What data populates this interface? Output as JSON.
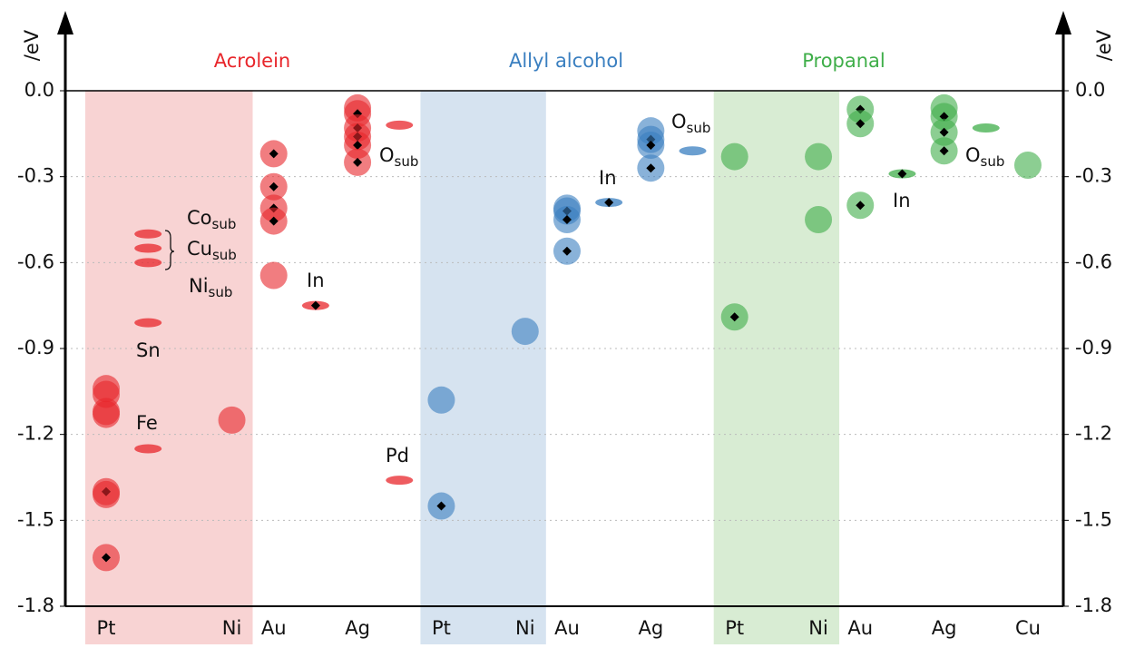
{
  "chart_data": {
    "type": "scatter",
    "ylabel": "/eV",
    "ylim": [
      -1.8,
      0
    ],
    "yticks": [
      {
        "value": 0,
        "label": "0.0"
      },
      -0.3,
      -0.6,
      -0.9,
      -1.2,
      -1.5,
      -1.8
    ],
    "grid": true,
    "categories": [
      "Pt",
      null,
      null,
      "Ni",
      "Au",
      null,
      "Ag",
      null,
      "Pt",
      null,
      "Ni",
      "Au",
      null,
      "Ag",
      null,
      "Pt",
      null,
      "Ni",
      "Au",
      null,
      "Ag",
      null,
      "Cu"
    ],
    "series": [
      {
        "name": "Acrolein",
        "color": "#e8262b",
        "band_color": "#f8d3d3",
        "points": [
          {
            "category": 0,
            "value": -1.04,
            "shape": "circle",
            "diamond": false
          },
          {
            "category": 0,
            "value": -1.06,
            "shape": "circle",
            "diamond": false
          },
          {
            "category": 0,
            "value": -1.12,
            "shape": "circle",
            "diamond": false
          },
          {
            "category": 0,
            "value": -1.13,
            "shape": "circle",
            "diamond": false
          },
          {
            "category": 0,
            "value": -1.4,
            "shape": "circle",
            "diamond": true
          },
          {
            "category": 0,
            "value": -1.41,
            "shape": "circle",
            "diamond": false
          },
          {
            "category": 0,
            "value": -1.63,
            "shape": "circle",
            "diamond": true
          },
          {
            "category": 1,
            "value": -0.5,
            "shape": "ellipse",
            "diamond": false
          },
          {
            "category": 1,
            "value": -0.55,
            "shape": "ellipse",
            "diamond": false
          },
          {
            "category": 1,
            "value": -0.6,
            "shape": "ellipse",
            "diamond": false
          },
          {
            "category": 1,
            "value": -0.81,
            "shape": "ellipse",
            "diamond": false
          },
          {
            "category": 1,
            "value": -1.25,
            "shape": "ellipse",
            "diamond": false
          },
          {
            "category": 3,
            "value": -1.15,
            "shape": "circle",
            "diamond": false
          },
          {
            "category": 4,
            "value": -0.22,
            "shape": "circle",
            "diamond": true
          },
          {
            "category": 4,
            "value": -0.335,
            "shape": "circle",
            "diamond": true
          },
          {
            "category": 4,
            "value": -0.41,
            "shape": "circle",
            "diamond": true
          },
          {
            "category": 4,
            "value": -0.455,
            "shape": "circle",
            "diamond": true
          },
          {
            "category": 4,
            "value": -0.645,
            "shape": "circle",
            "diamond": false
          },
          {
            "category": 5,
            "value": -0.75,
            "shape": "ellipse",
            "diamond": true
          },
          {
            "category": 6,
            "value": -0.06,
            "shape": "circle",
            "diamond": false
          },
          {
            "category": 6,
            "value": -0.08,
            "shape": "circle",
            "diamond": true
          },
          {
            "category": 6,
            "value": -0.13,
            "shape": "circle",
            "diamond": true
          },
          {
            "category": 6,
            "value": -0.16,
            "shape": "circle",
            "diamond": true
          },
          {
            "category": 6,
            "value": -0.19,
            "shape": "circle",
            "diamond": true
          },
          {
            "category": 6,
            "value": -0.25,
            "shape": "circle",
            "diamond": true
          },
          {
            "category": 7,
            "value": -0.12,
            "shape": "ellipse",
            "diamond": false
          },
          {
            "category": 7,
            "value": -1.36,
            "shape": "ellipse",
            "diamond": false
          }
        ]
      },
      {
        "name": "Allyl alcohol",
        "color": "#3a7fc0",
        "band_color": "#d6e3f0",
        "points": [
          {
            "category": 8,
            "value": -1.08,
            "shape": "circle",
            "diamond": false
          },
          {
            "category": 8,
            "value": -1.45,
            "shape": "circle",
            "diamond": true
          },
          {
            "category": 10,
            "value": -0.84,
            "shape": "circle",
            "diamond": false
          },
          {
            "category": 11,
            "value": -0.41,
            "shape": "circle",
            "diamond": false
          },
          {
            "category": 11,
            "value": -0.42,
            "shape": "circle",
            "diamond": true
          },
          {
            "category": 11,
            "value": -0.45,
            "shape": "circle",
            "diamond": true
          },
          {
            "category": 11,
            "value": -0.56,
            "shape": "circle",
            "diamond": true
          },
          {
            "category": 12,
            "value": -0.39,
            "shape": "ellipse",
            "diamond": true
          },
          {
            "category": 13,
            "value": -0.14,
            "shape": "circle",
            "diamond": false
          },
          {
            "category": 13,
            "value": -0.17,
            "shape": "circle",
            "diamond": true
          },
          {
            "category": 13,
            "value": -0.19,
            "shape": "circle",
            "diamond": true
          },
          {
            "category": 13,
            "value": -0.27,
            "shape": "circle",
            "diamond": true
          },
          {
            "category": 14,
            "value": -0.21,
            "shape": "ellipse",
            "diamond": false
          }
        ]
      },
      {
        "name": "Propanal",
        "color": "#3fae49",
        "band_color": "#d8ecd3",
        "points": [
          {
            "category": 15,
            "value": -0.23,
            "shape": "circle",
            "diamond": false
          },
          {
            "category": 15,
            "value": -0.79,
            "shape": "circle",
            "diamond": true
          },
          {
            "category": 17,
            "value": -0.23,
            "shape": "circle",
            "diamond": false
          },
          {
            "category": 17,
            "value": -0.45,
            "shape": "circle",
            "diamond": false
          },
          {
            "category": 18,
            "value": -0.065,
            "shape": "circle",
            "diamond": true
          },
          {
            "category": 18,
            "value": -0.115,
            "shape": "circle",
            "diamond": true
          },
          {
            "category": 18,
            "value": -0.4,
            "shape": "circle",
            "diamond": true
          },
          {
            "category": 19,
            "value": -0.29,
            "shape": "ellipse",
            "diamond": true
          },
          {
            "category": 20,
            "value": -0.06,
            "shape": "circle",
            "diamond": false
          },
          {
            "category": 20,
            "value": -0.09,
            "shape": "circle",
            "diamond": true
          },
          {
            "category": 20,
            "value": -0.145,
            "shape": "circle",
            "diamond": true
          },
          {
            "category": 20,
            "value": -0.21,
            "shape": "circle",
            "diamond": true
          },
          {
            "category": 21,
            "value": -0.13,
            "shape": "ellipse",
            "diamond": false
          },
          {
            "category": 22,
            "value": -0.26,
            "shape": "circle",
            "diamond": false
          }
        ]
      }
    ],
    "annotations": [
      {
        "text": "Co",
        "sub": "sub"
      },
      {
        "text": "Cu",
        "sub": "sub"
      },
      {
        "text": "Ni",
        "sub": "sub"
      },
      {
        "text": "Sn"
      },
      {
        "text": "Fe"
      },
      {
        "text": "In"
      },
      {
        "text": "O",
        "sub": "sub"
      },
      {
        "text": "Pd"
      },
      {
        "text": "In"
      },
      {
        "text": "O",
        "sub": "sub"
      },
      {
        "text": "In"
      },
      {
        "text": "O",
        "sub": "sub"
      }
    ]
  }
}
